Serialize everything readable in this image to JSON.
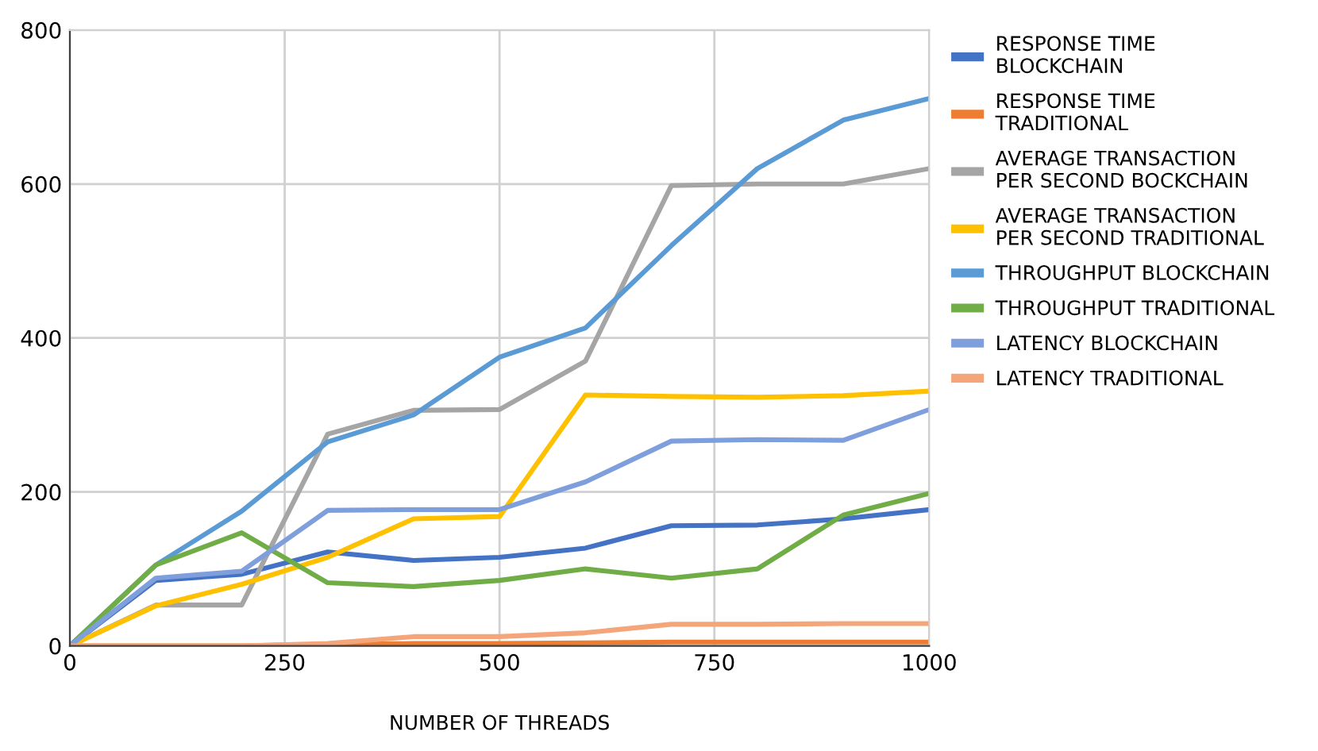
{
  "chart_data": {
    "type": "line",
    "xlabel": "NUMBER OF THREADS",
    "x": [
      0,
      100,
      200,
      300,
      400,
      500,
      600,
      700,
      800,
      900,
      1000
    ],
    "xlim": [
      0,
      1000
    ],
    "xticks": [
      0,
      250,
      500,
      750,
      1000
    ],
    "ylim": [
      0,
      800
    ],
    "yticks": [
      0,
      200,
      400,
      600,
      800
    ],
    "grid": true,
    "legend": "right",
    "marker": "none",
    "line_style": "solid",
    "series": [
      {
        "name": "RESPONSE TIME BLOCKCHAIN",
        "color": "#4472c4",
        "values": [
          0,
          85,
          93,
          122,
          111,
          115,
          127,
          156,
          157,
          165,
          177
        ]
      },
      {
        "name": "RESPONSE TIME TRADITIONAL",
        "color": "#ed7d31",
        "values": [
          0,
          0,
          0,
          2,
          3,
          3,
          4,
          5,
          5,
          5,
          5
        ]
      },
      {
        "name": "AVERAGE TRANSACTION PER SECOND BOCKCHAIN",
        "color": "#a5a5a5",
        "values": [
          0,
          53,
          53,
          275,
          306,
          307,
          370,
          598,
          600,
          600,
          620
        ]
      },
      {
        "name": "AVERAGE TRANSACTION PER SECOND TRADITIONAL",
        "color": "#ffc000",
        "values": [
          0,
          52,
          80,
          115,
          165,
          168,
          326,
          324,
          323,
          325,
          331
        ]
      },
      {
        "name": "THROUGHPUT BLOCKCHAIN",
        "color": "#5b9bd5",
        "values": [
          0,
          105,
          175,
          265,
          300,
          375,
          413,
          520,
          620,
          683,
          711
        ]
      },
      {
        "name": "THROUGHPUT TRADITIONAL",
        "color": "#70ad47",
        "values": [
          0,
          105,
          147,
          82,
          77,
          85,
          100,
          88,
          100,
          170,
          198
        ]
      },
      {
        "name": "LATENCY BLOCKCHAIN",
        "color": "#7f9fdc",
        "values": [
          0,
          88,
          97,
          176,
          177,
          177,
          213,
          266,
          268,
          267,
          307
        ]
      },
      {
        "name": "LATENCY TRADITIONAL",
        "color": "#f4a57a",
        "values": [
          0,
          0,
          0,
          3,
          12,
          12,
          17,
          28,
          28,
          29,
          29
        ]
      }
    ]
  }
}
